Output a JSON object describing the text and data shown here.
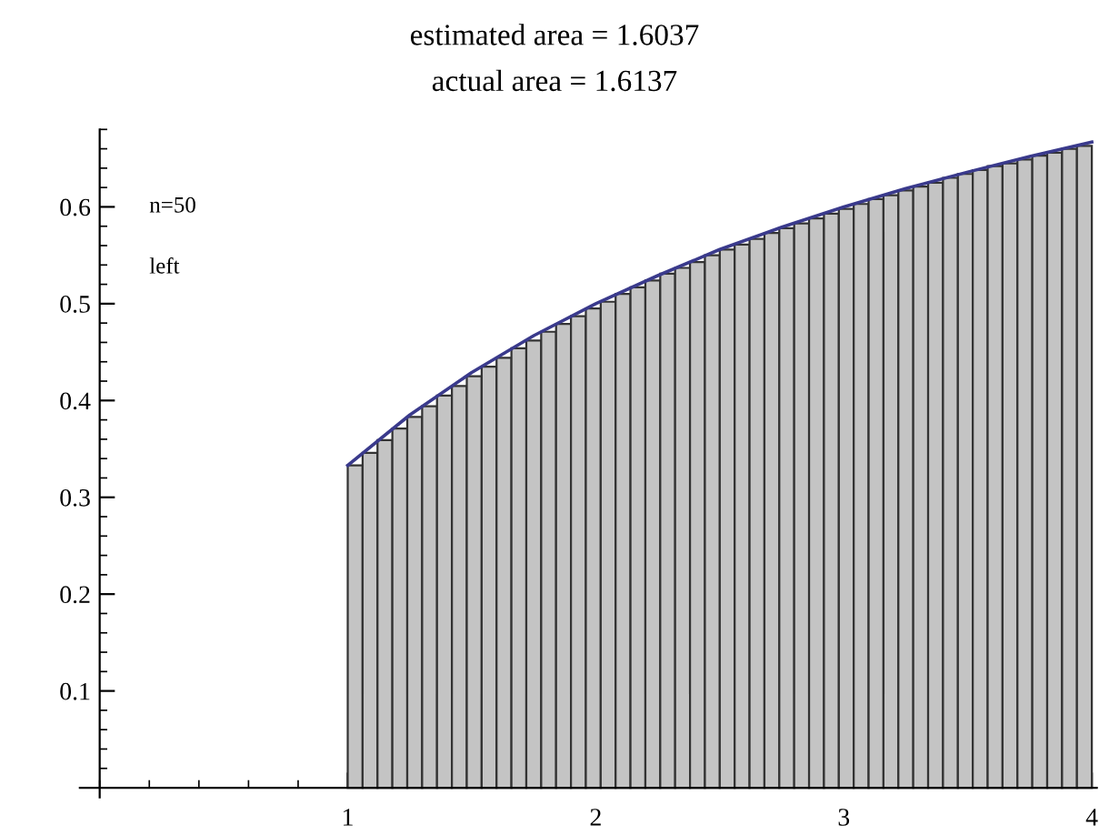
{
  "chart_data": {
    "type": "histogram",
    "title": "estimated area = 1.6037",
    "subtitle": "actual area = 1.6137",
    "annotations": [
      "n=50",
      "left"
    ],
    "series": [
      {
        "color": "#c4c4c4",
        "bins": [
          1.0,
          1.06,
          1.12,
          1.18,
          1.24,
          1.3,
          1.36,
          1.42,
          1.48,
          1.54,
          1.6,
          1.66,
          1.72,
          1.78,
          1.84,
          1.9,
          1.96,
          2.02,
          2.08,
          2.14,
          2.2,
          2.26,
          2.32,
          2.38,
          2.44,
          2.5,
          2.56,
          2.62,
          2.68,
          2.74,
          2.8,
          2.86,
          2.92,
          2.98,
          3.04,
          3.1,
          3.16,
          3.22,
          3.28,
          3.34,
          3.4,
          3.46,
          3.52,
          3.58,
          3.64,
          3.7,
          3.76,
          3.82,
          3.88,
          3.94,
          4.0
        ],
        "values": [
          0.333,
          0.346,
          0.359,
          0.371,
          0.383,
          0.394,
          0.405,
          0.415,
          0.425,
          0.435,
          0.444,
          0.454,
          0.462,
          0.471,
          0.479,
          0.487,
          0.495,
          0.502,
          0.51,
          0.517,
          0.524,
          0.531,
          0.537,
          0.543,
          0.55,
          0.556,
          0.561,
          0.567,
          0.573,
          0.578,
          0.583,
          0.588,
          0.593,
          0.598,
          0.603,
          0.608,
          0.612,
          0.617,
          0.621,
          0.625,
          0.63,
          0.634,
          0.638,
          0.642,
          0.645,
          0.649,
          0.653,
          0.656,
          0.66,
          0.663
        ]
      },
      {
        "type": "line",
        "color": "#3a3a8c",
        "x": [
          1.0,
          1.25,
          1.5,
          1.75,
          2.0,
          2.25,
          2.5,
          2.75,
          3.0,
          3.25,
          3.5,
          3.75,
          4.0
        ],
        "values": [
          0.333,
          0.385,
          0.429,
          0.467,
          0.5,
          0.529,
          0.556,
          0.579,
          0.6,
          0.619,
          0.636,
          0.652,
          0.667
        ]
      }
    ],
    "xlim": [
      -0.08,
      4.02
    ],
    "ylim": [
      -0.01,
      0.68
    ],
    "xticks": [
      1,
      2,
      3,
      4
    ],
    "yticks": [
      0.1,
      0.2,
      0.3,
      0.4,
      0.5,
      0.6
    ],
    "grid": false,
    "legend": false
  }
}
